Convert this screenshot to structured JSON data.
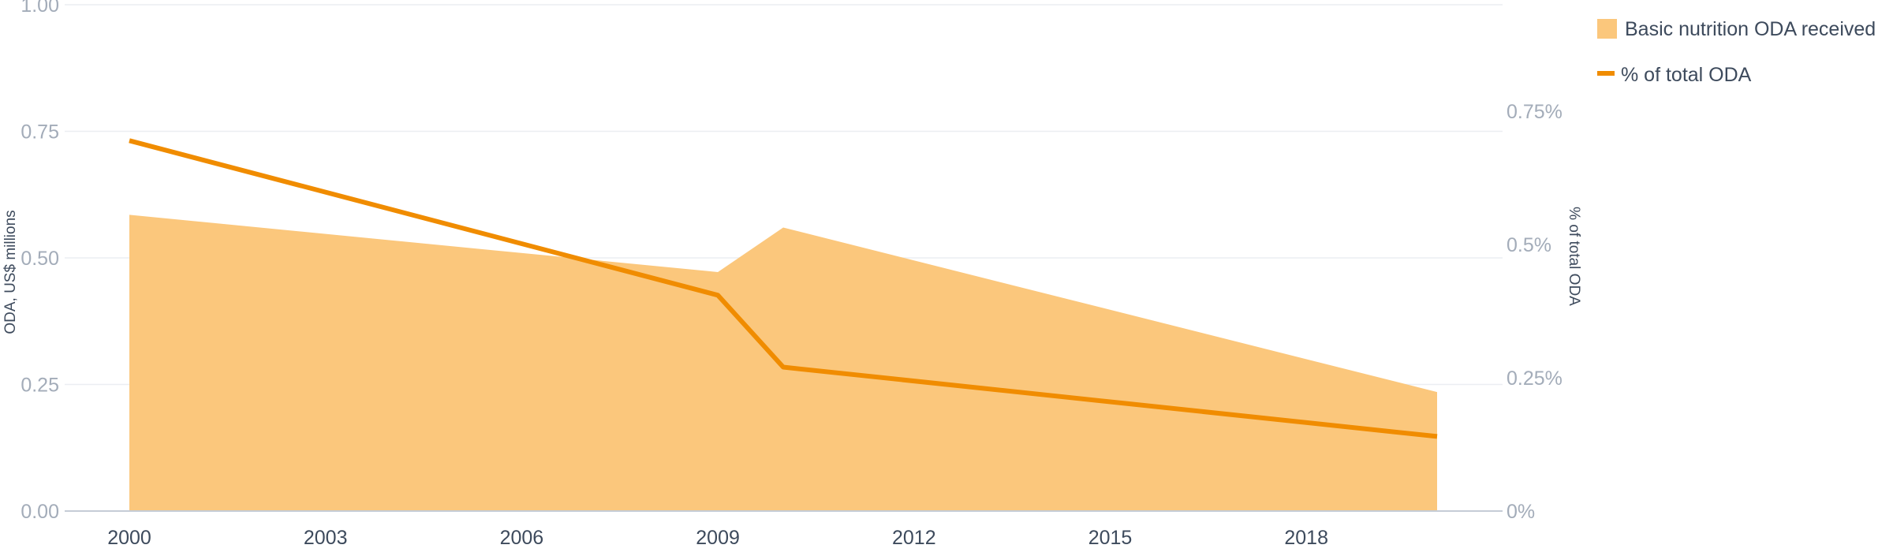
{
  "chart_data": {
    "type": "area",
    "x_ticks": [
      "2000",
      "2003",
      "2006",
      "2009",
      "2012",
      "2015",
      "2018"
    ],
    "x_range": [
      1999,
      2021
    ],
    "y_left": {
      "label": "ODA, US$ millions",
      "range": [
        0,
        1
      ],
      "ticks": [
        "0.00",
        "0.25",
        "0.50",
        "0.75",
        "1.00"
      ]
    },
    "y_right": {
      "label": "% of total ODA",
      "range": [
        0,
        0.95
      ],
      "ticks": [
        "0%",
        "0.25%",
        "0.5%",
        "0.75%"
      ]
    },
    "series": [
      {
        "name": "Basic nutrition ODA received",
        "kind": "area",
        "axis": "left",
        "color": "#fbc77c",
        "x": [
          2000,
          2009,
          2010,
          2020
        ],
        "values": [
          0.585,
          0.472,
          0.56,
          0.235
        ]
      },
      {
        "name": "% of total ODA",
        "kind": "line",
        "axis": "right",
        "color": "#f08c00",
        "x": [
          2000,
          2009,
          2010,
          2020
        ],
        "values": [
          0.695,
          0.405,
          0.27,
          0.14
        ]
      }
    ],
    "grid": true,
    "legend_position": "top-right"
  }
}
